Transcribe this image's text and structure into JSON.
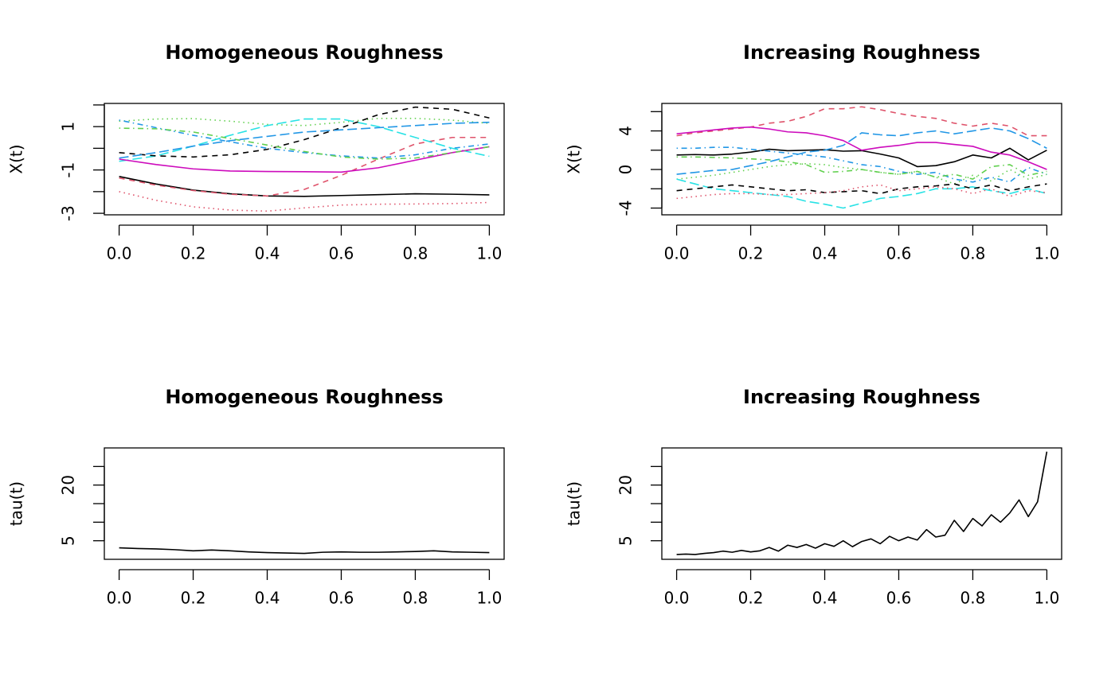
{
  "chart_data": [
    {
      "type": "line",
      "title": "Homogeneous Roughness",
      "ylabel": "X(t)",
      "x": [
        0,
        0.1,
        0.2,
        0.3,
        0.4,
        0.5,
        0.6,
        0.7,
        0.8,
        0.9,
        1.0
      ],
      "series": [
        {
          "color": "#000000",
          "linestyle": "solid",
          "values": [
            -1.3,
            -1.65,
            -1.93,
            -2.1,
            -2.2,
            -2.22,
            -2.18,
            -2.14,
            -2.1,
            -2.12,
            -2.15
          ]
        },
        {
          "color": "#DF536B",
          "linestyle": "dashed",
          "values": [
            -1.37,
            -1.7,
            -1.95,
            -2.12,
            -2.2,
            -1.9,
            -1.25,
            -0.5,
            0.2,
            0.5,
            0.5
          ]
        },
        {
          "color": "#61D04F",
          "linestyle": "dotted",
          "values": [
            1.25,
            1.35,
            1.37,
            1.25,
            1.1,
            1.05,
            1.2,
            1.38,
            1.38,
            1.3,
            1.15
          ]
        },
        {
          "color": "#2297E6",
          "linestyle": "dotdash",
          "values": [
            1.3,
            0.95,
            0.6,
            0.3,
            0.0,
            -0.2,
            -0.35,
            -0.45,
            -0.3,
            0.0,
            0.2
          ]
        },
        {
          "color": "#28E2E5",
          "linestyle": "longdash",
          "values": [
            -0.6,
            -0.35,
            0.1,
            0.6,
            1.05,
            1.35,
            1.35,
            1.0,
            0.5,
            0.0,
            -0.37
          ]
        },
        {
          "color": "#CD0BBC",
          "linestyle": "solid",
          "values": [
            -0.5,
            -0.75,
            -0.95,
            -1.05,
            -1.07,
            -1.08,
            -1.1,
            -0.9,
            -0.55,
            -0.2,
            0.07
          ]
        },
        {
          "color": "#000000",
          "linestyle": "dashed",
          "values": [
            -0.2,
            -0.35,
            -0.4,
            -0.3,
            -0.05,
            0.4,
            0.95,
            1.55,
            1.9,
            1.8,
            1.4
          ]
        },
        {
          "color": "#DF536B",
          "linestyle": "dotted",
          "values": [
            -2.0,
            -2.4,
            -2.7,
            -2.85,
            -2.9,
            -2.75,
            -2.62,
            -2.58,
            -2.57,
            -2.55,
            -2.5
          ]
        },
        {
          "color": "#61D04F",
          "linestyle": "dotdash",
          "values": [
            0.93,
            0.9,
            0.75,
            0.45,
            0.15,
            -0.15,
            -0.4,
            -0.5,
            -0.45,
            -0.2,
            0.07
          ]
        },
        {
          "color": "#2297E6",
          "linestyle": "longdash",
          "values": [
            -0.45,
            -0.2,
            0.1,
            0.35,
            0.55,
            0.75,
            0.85,
            0.95,
            1.05,
            1.15,
            1.2
          ]
        }
      ],
      "xlim": [
        -0.04,
        1.04
      ],
      "ylim": [
        -3.07,
        2.07
      ],
      "xticks": [
        {
          "value": 0,
          "label": "0.0"
        },
        0.2,
        0.4,
        0.6,
        0.8,
        {
          "value": 1,
          "label": "1.0"
        }
      ],
      "yticks": [
        -3,
        -1,
        1
      ],
      "yminorticks": [
        -2,
        0,
        2
      ]
    },
    {
      "type": "line",
      "title": "Increasing Roughness",
      "ylabel": "X(t)",
      "x": [
        0,
        0.05,
        0.1,
        0.15,
        0.2,
        0.25,
        0.3,
        0.35,
        0.4,
        0.45,
        0.5,
        0.55,
        0.6,
        0.65,
        0.7,
        0.75,
        0.8,
        0.85,
        0.9,
        0.95,
        1.0
      ],
      "series": [
        {
          "color": "#000000",
          "linestyle": "solid",
          "values": [
            1.5,
            1.55,
            1.5,
            1.6,
            1.8,
            2.1,
            1.95,
            2.0,
            2.05,
            1.9,
            1.95,
            1.6,
            1.2,
            0.3,
            0.4,
            0.8,
            1.5,
            1.2,
            2.2,
            1.0,
            2.0
          ]
        },
        {
          "color": "#DF536B",
          "linestyle": "dashed",
          "values": [
            3.5,
            3.8,
            4.0,
            4.2,
            4.4,
            4.8,
            5.0,
            5.5,
            6.3,
            6.3,
            6.5,
            6.2,
            5.8,
            5.5,
            5.3,
            4.8,
            4.5,
            4.8,
            4.5,
            3.5,
            3.5
          ]
        },
        {
          "color": "#61D04F",
          "linestyle": "dotted",
          "values": [
            -1.0,
            -0.8,
            -0.6,
            -0.3,
            0.0,
            0.3,
            0.5,
            0.6,
            0.5,
            0.2,
            0.0,
            -0.3,
            -0.5,
            -0.2,
            -0.8,
            -1.5,
            -0.6,
            -1.2,
            0.0,
            -1.0,
            -0.5
          ]
        },
        {
          "color": "#2297E6",
          "linestyle": "dotdash",
          "values": [
            2.2,
            2.2,
            2.3,
            2.3,
            2.1,
            1.9,
            1.7,
            1.5,
            1.3,
            0.9,
            0.5,
            0.3,
            -0.2,
            -0.5,
            -0.3,
            -1.0,
            -1.3,
            -0.8,
            -1.3,
            0.2,
            -0.5
          ]
        },
        {
          "color": "#28E2E5",
          "linestyle": "longdash",
          "values": [
            -1.0,
            -1.5,
            -2.0,
            -2.2,
            -2.4,
            -2.6,
            -2.8,
            -3.3,
            -3.6,
            -4.0,
            -3.5,
            -3.0,
            -2.8,
            -2.5,
            -2.0,
            -2.0,
            -1.8,
            -2.2,
            -2.5,
            -2.0,
            -2.5
          ]
        },
        {
          "color": "#CD0BBC",
          "linestyle": "solid",
          "values": [
            3.7,
            3.9,
            4.1,
            4.3,
            4.4,
            4.2,
            3.9,
            3.8,
            3.5,
            3.0,
            2.0,
            2.3,
            2.5,
            2.8,
            2.8,
            2.6,
            2.4,
            1.8,
            1.5,
            0.8,
            0.0
          ]
        },
        {
          "color": "#000000",
          "linestyle": "dashed",
          "values": [
            -2.2,
            -2.0,
            -1.8,
            -1.6,
            -1.8,
            -2.0,
            -2.2,
            -2.1,
            -2.4,
            -2.3,
            -2.2,
            -2.5,
            -2.0,
            -1.8,
            -1.7,
            -1.5,
            -2.0,
            -1.6,
            -2.2,
            -1.8,
            -1.5
          ]
        },
        {
          "color": "#DF536B",
          "linestyle": "dotted",
          "values": [
            -3.0,
            -2.8,
            -2.6,
            -2.5,
            -2.5,
            -2.6,
            -2.6,
            -2.5,
            -2.4,
            -2.2,
            -1.8,
            -1.6,
            -2.2,
            -2.0,
            -1.8,
            -2.0,
            -2.5,
            -2.0,
            -2.8,
            -2.2,
            -2.4
          ]
        },
        {
          "color": "#61D04F",
          "linestyle": "dotdash",
          "values": [
            1.3,
            1.3,
            1.25,
            1.2,
            1.1,
            1.0,
            0.8,
            0.5,
            -0.3,
            -0.2,
            0.0,
            -0.3,
            -0.5,
            -0.2,
            -0.8,
            -0.5,
            -1.0,
            0.3,
            0.5,
            -0.6,
            -0.2
          ]
        },
        {
          "color": "#2297E6",
          "linestyle": "longdash",
          "values": [
            -0.5,
            -0.3,
            -0.1,
            0.0,
            0.4,
            0.8,
            1.3,
            1.8,
            2.0,
            2.5,
            3.8,
            3.6,
            3.5,
            3.8,
            4.0,
            3.7,
            4.0,
            4.3,
            4.0,
            3.2,
            2.2
          ]
        }
      ],
      "xlim": [
        -0.04,
        1.04
      ],
      "ylim": [
        -4.7,
        6.85
      ],
      "xticks": [
        {
          "value": 0,
          "label": "0.0"
        },
        0.2,
        0.4,
        0.6,
        0.8,
        {
          "value": 1,
          "label": "1.0"
        }
      ],
      "yticks": [
        -4,
        0,
        4
      ],
      "yminorticks": [
        -2,
        2,
        6
      ]
    },
    {
      "type": "line",
      "title": "Homogeneous Roughness",
      "ylabel": "tau(t)",
      "x": [
        0,
        0.05,
        0.1,
        0.15,
        0.2,
        0.25,
        0.3,
        0.35,
        0.4,
        0.45,
        0.5,
        0.55,
        0.6,
        0.65,
        0.7,
        0.75,
        0.8,
        0.85,
        0.9,
        0.95,
        1.0
      ],
      "series": [
        {
          "color": "#000000",
          "linestyle": "solid",
          "values": [
            3.1,
            2.9,
            2.8,
            2.6,
            2.3,
            2.5,
            2.3,
            2.0,
            1.8,
            1.7,
            1.6,
            1.9,
            2.0,
            1.9,
            1.9,
            2.0,
            2.1,
            2.3,
            2.0,
            1.9,
            1.8
          ]
        }
      ],
      "xlim": [
        -0.04,
        1.04
      ],
      "ylim": [
        0,
        30
      ],
      "xticks": [
        {
          "value": 0,
          "label": "0.0"
        },
        0.2,
        0.4,
        0.6,
        0.8,
        {
          "value": 1,
          "label": "1.0"
        }
      ],
      "yticks": [
        5,
        20
      ],
      "yminorticks": [
        10,
        15,
        25
      ]
    },
    {
      "type": "line",
      "title": "Increasing Roughness",
      "ylabel": "tau(t)",
      "x": [
        0,
        0.025,
        0.05,
        0.075,
        0.1,
        0.125,
        0.15,
        0.175,
        0.2,
        0.225,
        0.25,
        0.275,
        0.3,
        0.325,
        0.35,
        0.375,
        0.4,
        0.425,
        0.45,
        0.475,
        0.5,
        0.525,
        0.55,
        0.575,
        0.6,
        0.625,
        0.65,
        0.675,
        0.7,
        0.725,
        0.75,
        0.775,
        0.8,
        0.825,
        0.85,
        0.875,
        0.9,
        0.925,
        0.95,
        0.975,
        1.0
      ],
      "series": [
        {
          "color": "#000000",
          "linestyle": "solid",
          "values": [
            1.3,
            1.4,
            1.3,
            1.6,
            1.8,
            2.2,
            1.9,
            2.4,
            2.0,
            2.3,
            3.2,
            2.2,
            3.8,
            3.2,
            4.0,
            3.0,
            4.2,
            3.5,
            5.0,
            3.4,
            4.8,
            5.5,
            4.2,
            6.2,
            5.0,
            6.0,
            5.2,
            8.0,
            6.0,
            6.5,
            10.5,
            7.5,
            11.0,
            9.0,
            12.0,
            10.0,
            12.5,
            16.0,
            11.5,
            15.5,
            29.0
          ]
        }
      ],
      "xlim": [
        -0.04,
        1.04
      ],
      "ylim": [
        0,
        30
      ],
      "xticks": [
        {
          "value": 0,
          "label": "0.0"
        },
        0.2,
        0.4,
        0.6,
        0.8,
        {
          "value": 1,
          "label": "1.0"
        }
      ],
      "yticks": [
        5,
        20
      ],
      "yminorticks": [
        10,
        15,
        25
      ]
    }
  ]
}
